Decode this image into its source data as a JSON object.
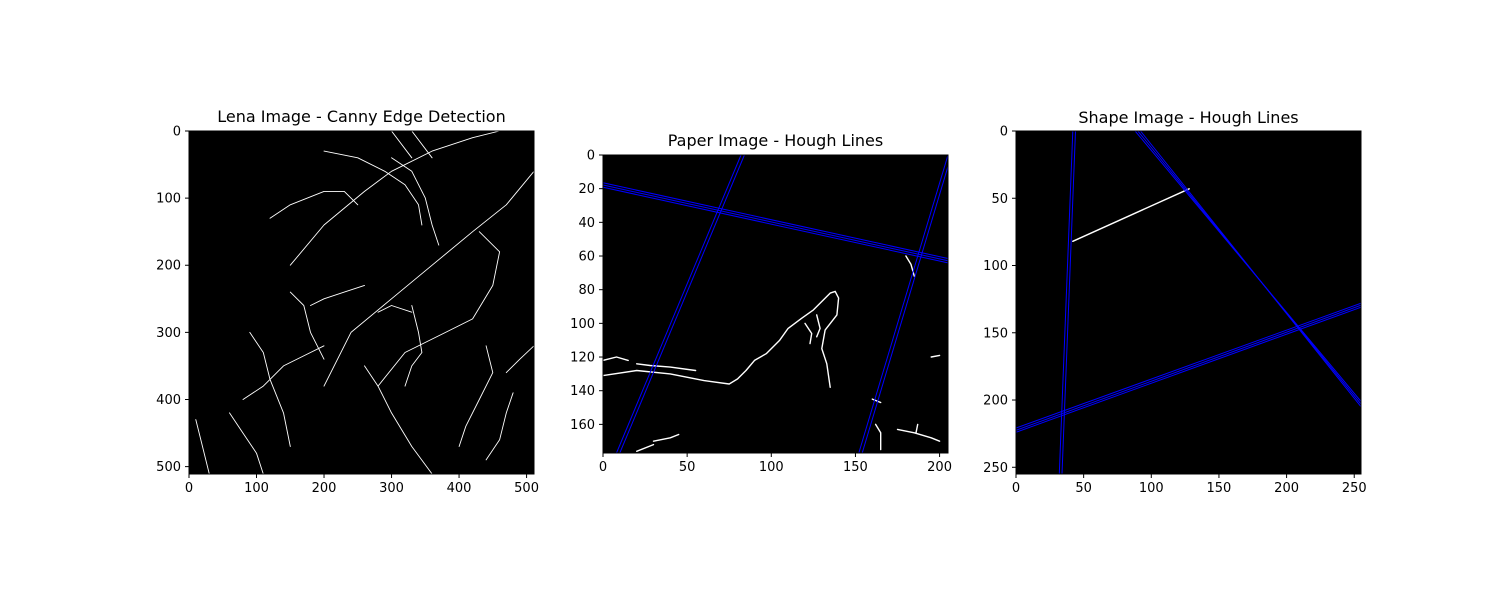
{
  "chart_data": [
    {
      "type": "heatmap",
      "title": "Lena Image - Canny Edge Detection",
      "image": "edge map (white edges on black)",
      "xlim": [
        0,
        511
      ],
      "ylim": [
        0,
        511
      ],
      "xticks": [
        0,
        100,
        200,
        300,
        400,
        500
      ],
      "yticks": [
        0,
        100,
        200,
        300,
        400,
        500
      ],
      "y_inverted": true,
      "edge_polylines": [
        [
          [
            150,
            200
          ],
          [
            200,
            140
          ],
          [
            260,
            90
          ],
          [
            300,
            60
          ],
          [
            360,
            30
          ],
          [
            420,
            10
          ],
          [
            460,
            0
          ]
        ],
        [
          [
            200,
            380
          ],
          [
            240,
            300
          ],
          [
            300,
            250
          ],
          [
            360,
            200
          ],
          [
            420,
            150
          ],
          [
            470,
            110
          ],
          [
            511,
            60
          ]
        ],
        [
          [
            280,
            380
          ],
          [
            320,
            330
          ],
          [
            380,
            300
          ],
          [
            420,
            280
          ],
          [
            450,
            230
          ],
          [
            460,
            180
          ],
          [
            430,
            150
          ]
        ],
        [
          [
            200,
            30
          ],
          [
            250,
            40
          ],
          [
            290,
            60
          ],
          [
            320,
            80
          ],
          [
            340,
            110
          ],
          [
            345,
            140
          ]
        ],
        [
          [
            120,
            130
          ],
          [
            150,
            110
          ],
          [
            200,
            90
          ],
          [
            230,
            90
          ],
          [
            250,
            110
          ]
        ],
        [
          [
            330,
            260
          ],
          [
            340,
            300
          ],
          [
            345,
            330
          ],
          [
            330,
            350
          ],
          [
            320,
            380
          ]
        ],
        [
          [
            300,
            40
          ],
          [
            330,
            60
          ],
          [
            350,
            100
          ],
          [
            360,
            140
          ],
          [
            370,
            170
          ]
        ],
        [
          [
            80,
            400
          ],
          [
            110,
            380
          ],
          [
            140,
            350
          ],
          [
            180,
            330
          ],
          [
            200,
            320
          ]
        ],
        [
          [
            60,
            420
          ],
          [
            80,
            450
          ],
          [
            100,
            480
          ],
          [
            110,
            511
          ]
        ],
        [
          [
            10,
            430
          ],
          [
            20,
            470
          ],
          [
            30,
            511
          ]
        ],
        [
          [
            440,
            320
          ],
          [
            450,
            360
          ],
          [
            430,
            400
          ],
          [
            410,
            440
          ],
          [
            400,
            470
          ]
        ],
        [
          [
            260,
            350
          ],
          [
            280,
            380
          ],
          [
            300,
            420
          ],
          [
            330,
            470
          ],
          [
            360,
            511
          ]
        ],
        [
          [
            150,
            240
          ],
          [
            170,
            260
          ],
          [
            180,
            300
          ],
          [
            200,
            340
          ]
        ],
        [
          [
            90,
            300
          ],
          [
            110,
            330
          ],
          [
            120,
            370
          ],
          [
            140,
            420
          ],
          [
            150,
            470
          ]
        ],
        [
          [
            180,
            260
          ],
          [
            200,
            250
          ],
          [
            230,
            240
          ],
          [
            260,
            230
          ]
        ],
        [
          [
            280,
            270
          ],
          [
            300,
            260
          ],
          [
            330,
            270
          ]
        ],
        [
          [
            300,
            0
          ],
          [
            330,
            40
          ]
        ],
        [
          [
            330,
            0
          ],
          [
            360,
            40
          ]
        ],
        [
          [
            480,
            390
          ],
          [
            470,
            420
          ],
          [
            460,
            460
          ],
          [
            440,
            490
          ]
        ],
        [
          [
            470,
            360
          ],
          [
            490,
            340
          ],
          [
            511,
            320
          ]
        ]
      ]
    },
    {
      "type": "heatmap",
      "title": "Paper Image - Hough Lines",
      "image": "edge map with detected Hough lines",
      "xlim": [
        0,
        205
      ],
      "ylim": [
        0,
        177
      ],
      "xticks": [
        0,
        50,
        100,
        150,
        200
      ],
      "yticks": [
        0,
        20,
        40,
        60,
        80,
        100,
        120,
        140,
        160
      ],
      "y_inverted": true,
      "line_color": "#0000ff",
      "hough_lines": [
        {
          "from": [
            0,
            16.5
          ],
          "to": [
            205,
            61.5
          ]
        },
        {
          "from": [
            0,
            17.8
          ],
          "to": [
            205,
            62.8
          ]
        },
        {
          "from": [
            0,
            19.1
          ],
          "to": [
            205,
            64.1
          ]
        },
        {
          "from": [
            82,
            0
          ],
          "to": [
            8,
            177
          ]
        },
        {
          "from": [
            84,
            0
          ],
          "to": [
            10,
            177
          ]
        },
        {
          "from": [
            205,
            0
          ],
          "to": [
            152,
            177
          ]
        },
        {
          "from": [
            207,
            0
          ],
          "to": [
            154,
            177
          ]
        }
      ],
      "edge_polylines": [
        [
          [
            0,
            131
          ],
          [
            20,
            128
          ],
          [
            40,
            130
          ],
          [
            60,
            134
          ],
          [
            75,
            136
          ],
          [
            80,
            133
          ],
          [
            85,
            128
          ],
          [
            90,
            122
          ],
          [
            97,
            118
          ],
          [
            105,
            110
          ],
          [
            110,
            103
          ],
          [
            118,
            97
          ],
          [
            125,
            92
          ],
          [
            130,
            87
          ],
          [
            135,
            82
          ],
          [
            138,
            81
          ],
          [
            140,
            85
          ],
          [
            139,
            95
          ],
          [
            132,
            104
          ],
          [
            130,
            115
          ],
          [
            133,
            124
          ],
          [
            135,
            138
          ]
        ],
        [
          [
            0,
            122
          ],
          [
            8,
            120
          ],
          [
            15,
            122
          ]
        ],
        [
          [
            20,
            124
          ],
          [
            28,
            125
          ],
          [
            40,
            126
          ],
          [
            55,
            128
          ]
        ],
        [
          [
            120,
            100
          ],
          [
            124,
            106
          ],
          [
            123,
            112
          ]
        ],
        [
          [
            127,
            95
          ],
          [
            129,
            103
          ],
          [
            127,
            108
          ]
        ],
        [
          [
            30,
            170
          ],
          [
            40,
            168
          ],
          [
            45,
            166
          ]
        ],
        [
          [
            20,
            176
          ],
          [
            30,
            172
          ]
        ],
        [
          [
            160,
            145
          ],
          [
            165,
            147
          ]
        ],
        [
          [
            162,
            160
          ],
          [
            165,
            165
          ],
          [
            165,
            175
          ]
        ],
        [
          [
            175,
            163
          ],
          [
            185,
            165
          ],
          [
            195,
            168
          ],
          [
            200,
            170
          ]
        ],
        [
          [
            186,
            165
          ],
          [
            187,
            160
          ]
        ],
        [
          [
            195,
            120
          ],
          [
            200,
            119
          ]
        ],
        [
          [
            180,
            60
          ],
          [
            183,
            65
          ],
          [
            185,
            72
          ]
        ]
      ]
    },
    {
      "type": "heatmap",
      "title": "Shape Image - Hough Lines",
      "image": "edge map with detected Hough lines",
      "xlim": [
        0,
        255
      ],
      "ylim": [
        0,
        255
      ],
      "xticks": [
        0,
        50,
        100,
        150,
        200,
        250
      ],
      "yticks": [
        0,
        50,
        100,
        150,
        200,
        250
      ],
      "y_inverted": true,
      "line_color": "#0000ff",
      "hough_lines": [
        {
          "from": [
            0,
            222.5
          ],
          "to": [
            255,
            129.5
          ]
        },
        {
          "from": [
            0,
            224
          ],
          "to": [
            255,
            131
          ]
        },
        {
          "from": [
            0,
            220.8
          ],
          "to": [
            255,
            128
          ]
        },
        {
          "from": [
            42,
            0
          ],
          "to": [
            32,
            255
          ]
        },
        {
          "from": [
            44,
            0
          ],
          "to": [
            34,
            255
          ]
        },
        {
          "from": [
            90,
            0
          ],
          "to": [
            255,
            203
          ]
        },
        {
          "from": [
            92,
            0
          ],
          "to": [
            255,
            205
          ]
        },
        {
          "from": [
            88,
            0
          ],
          "to": [
            255,
            201
          ]
        }
      ],
      "edge_polylines": [
        [
          [
            42,
            82
          ],
          [
            128,
            43
          ]
        ]
      ]
    }
  ]
}
